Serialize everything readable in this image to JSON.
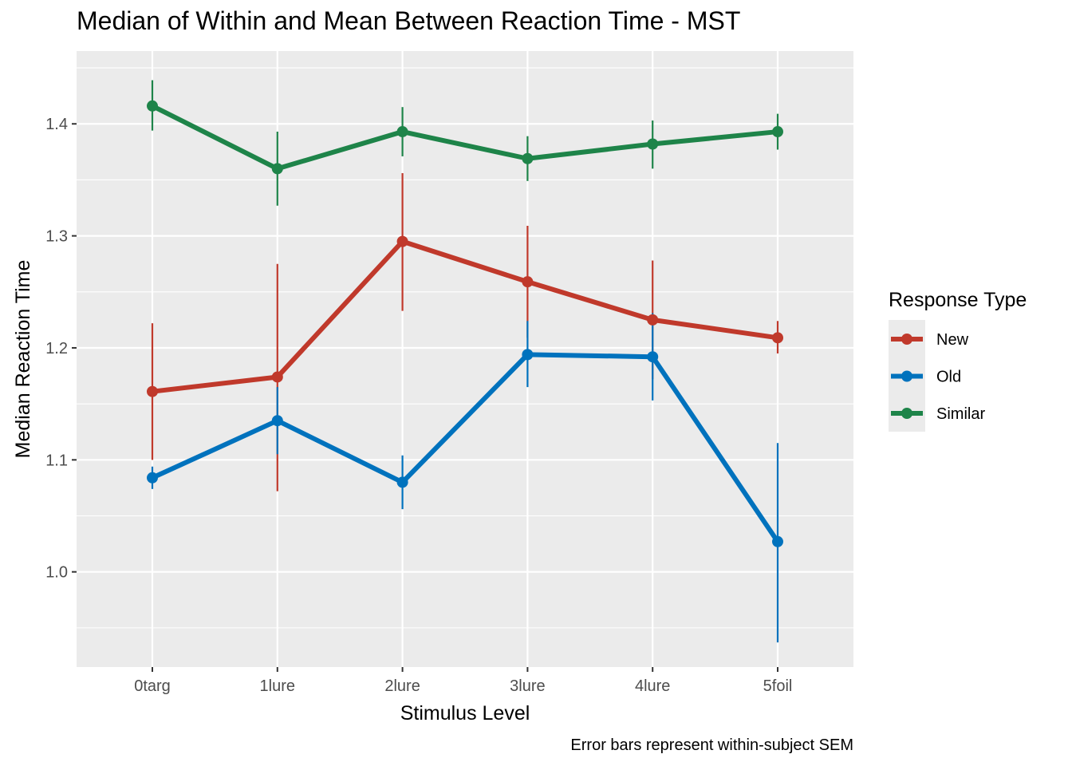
{
  "chart_data": {
    "type": "line",
    "title": "Median of Within and Mean Between Reaction Time - MST",
    "xlabel": "Stimulus Level",
    "ylabel": "Median Reaction Time",
    "caption": "Error bars represent within-subject SEM",
    "categories": [
      "0targ",
      "1lure",
      "2lure",
      "3lure",
      "4lure",
      "5foil"
    ],
    "ylim": [
      0.915,
      1.465
    ],
    "yticks": [
      "1.0",
      "1.1",
      "1.2",
      "1.3",
      "1.4"
    ],
    "grid": true,
    "legend": {
      "title": "Response Type",
      "placement": "right"
    },
    "series": [
      {
        "name": "New",
        "color": "#C0392B",
        "values": [
          1.161,
          1.174,
          1.295,
          1.259,
          1.225,
          1.209
        ],
        "err_low": [
          1.1,
          1.072,
          1.233,
          1.209,
          1.172,
          1.195
        ],
        "err_high": [
          1.222,
          1.275,
          1.356,
          1.309,
          1.278,
          1.224
        ]
      },
      {
        "name": "Old",
        "color": "#0072BD",
        "values": [
          1.084,
          1.135,
          1.08,
          1.194,
          1.192,
          1.027
        ],
        "err_low": [
          1.074,
          1.105,
          1.056,
          1.165,
          1.153,
          0.937
        ],
        "err_high": [
          1.094,
          1.165,
          1.104,
          1.224,
          1.231,
          1.115
        ]
      },
      {
        "name": "Similar",
        "color": "#1E8449",
        "values": [
          1.416,
          1.36,
          1.393,
          1.369,
          1.382,
          1.393
        ],
        "err_low": [
          1.394,
          1.327,
          1.371,
          1.349,
          1.36,
          1.377
        ],
        "err_high": [
          1.439,
          1.393,
          1.415,
          1.389,
          1.403,
          1.409
        ]
      }
    ]
  }
}
